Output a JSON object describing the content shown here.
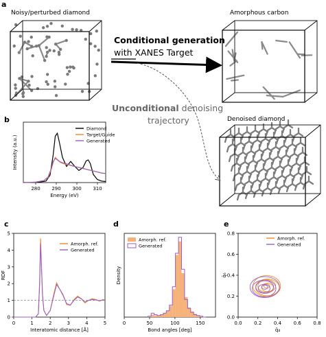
{
  "panels": {
    "a": {
      "letter": "a",
      "noisy_label": "Noisy/perturbed diamond",
      "amorphous_label": "Amorphous carbon",
      "denoised_label": "Denoised diamond",
      "cond_line1": "Conditional generation",
      "cond_line2": "with XANES Target",
      "uncond_bold": "Unconditional",
      "uncond_rest": " denoising",
      "uncond_line2": "trajectory"
    },
    "b": {
      "letter": "b"
    },
    "c": {
      "letter": "c"
    },
    "d": {
      "letter": "d"
    },
    "e": {
      "letter": "e"
    }
  },
  "colors": {
    "black": "#000000",
    "orange": "#f08a24",
    "purple": "#9a5fc2",
    "gray_struct": "#8a8a8a"
  },
  "chart_data": [
    {
      "id": "b",
      "type": "line",
      "xlabel": "Energy (eV)",
      "ylabel": "Intensity (a.u.)",
      "xlim": [
        274,
        314
      ],
      "ylim": [
        0,
        1.2
      ],
      "xticks": [
        280,
        290,
        300,
        310
      ],
      "legend_position": "top-right",
      "series": [
        {
          "name": "Diamond",
          "color": "#000000",
          "x": [
            274,
            282,
            285,
            287,
            288.5,
            289.5,
            290.5,
            291.5,
            293,
            295,
            297,
            299,
            301,
            303,
            304.5,
            305.5,
            306.5,
            308,
            310,
            312,
            314
          ],
          "y": [
            0.0,
            0.01,
            0.03,
            0.15,
            0.55,
            0.92,
            0.98,
            0.8,
            0.5,
            0.32,
            0.42,
            0.32,
            0.24,
            0.3,
            0.43,
            0.45,
            0.38,
            0.16,
            0.06,
            0.03,
            0.02
          ]
        },
        {
          "name": "Target/Guide",
          "color": "#f08a24",
          "x": [
            274,
            280,
            284,
            286,
            287.5,
            288.5,
            289.5,
            290.5,
            292,
            294,
            296,
            298,
            300,
            302,
            304,
            306,
            308,
            310,
            312,
            314
          ],
          "y": [
            0.0,
            0.01,
            0.04,
            0.1,
            0.25,
            0.4,
            0.5,
            0.46,
            0.4,
            0.37,
            0.35,
            0.33,
            0.31,
            0.29,
            0.27,
            0.25,
            0.23,
            0.21,
            0.19,
            0.18
          ]
        },
        {
          "name": "Generated",
          "color": "#9a5fc2",
          "x": [
            274,
            280,
            284,
            286,
            287.5,
            288.5,
            289.5,
            290.5,
            292,
            294,
            296,
            298,
            300,
            302,
            304,
            306,
            308,
            310,
            312,
            314
          ],
          "y": [
            0.0,
            0.01,
            0.04,
            0.11,
            0.27,
            0.42,
            0.48,
            0.45,
            0.41,
            0.38,
            0.36,
            0.33,
            0.31,
            0.29,
            0.27,
            0.25,
            0.23,
            0.21,
            0.19,
            0.18
          ]
        }
      ]
    },
    {
      "id": "c",
      "type": "line",
      "xlabel": "Interatomic distance [Å]",
      "ylabel": "RDF",
      "xlim": [
        0,
        5
      ],
      "ylim": [
        0,
        5
      ],
      "xticks": [
        0,
        1,
        2,
        3,
        4,
        5
      ],
      "yticks": [
        0,
        1,
        2,
        3,
        4,
        5
      ],
      "reference_line_y": 1,
      "legend_position": "top-right",
      "series": [
        {
          "name": "Amorph. ref.",
          "color": "#f08a24",
          "x": [
            0,
            1.2,
            1.35,
            1.42,
            1.47,
            1.52,
            1.58,
            1.65,
            1.8,
            2.0,
            2.2,
            2.35,
            2.5,
            2.7,
            2.9,
            3.1,
            3.3,
            3.5,
            3.7,
            3.9,
            4.1,
            4.3,
            4.5,
            4.7,
            4.9,
            5.0
          ],
          "y": [
            0,
            0,
            0.2,
            2.2,
            4.7,
            3.1,
            1.3,
            0.4,
            0.1,
            0.4,
            1.4,
            2.05,
            1.7,
            1.35,
            0.75,
            0.7,
            1.05,
            1.25,
            1.1,
            0.85,
            1.0,
            1.1,
            1.05,
            0.95,
            1.05,
            1.0
          ]
        },
        {
          "name": "Generated",
          "color": "#9a5fc2",
          "x": [
            0,
            1.2,
            1.35,
            1.42,
            1.47,
            1.52,
            1.58,
            1.65,
            1.8,
            2.0,
            2.2,
            2.35,
            2.5,
            2.7,
            2.9,
            3.1,
            3.3,
            3.5,
            3.7,
            3.9,
            4.1,
            4.3,
            4.5,
            4.7,
            4.9,
            5.0
          ],
          "y": [
            0,
            0,
            0.2,
            2.0,
            4.4,
            3.0,
            1.3,
            0.4,
            0.1,
            0.4,
            1.3,
            1.95,
            1.7,
            1.3,
            0.8,
            0.72,
            1.0,
            1.2,
            1.1,
            0.9,
            1.0,
            1.05,
            1.02,
            0.98,
            1.02,
            1.0
          ]
        }
      ]
    },
    {
      "id": "d",
      "type": "bar",
      "xlabel": "Bond angles [deg]",
      "ylabel": "Density",
      "xlim": [
        0,
        180
      ],
      "xticks": [
        0,
        50,
        100,
        150
      ],
      "legend_position": "top-right",
      "series": [
        {
          "name": "Amorph. ref.",
          "color": "#f5b27a",
          "x": [
            50,
            56,
            62,
            68,
            74,
            80,
            86,
            92,
            98,
            104,
            110,
            116,
            122,
            128,
            134,
            140,
            146,
            152,
            158
          ],
          "values": [
            0.01,
            0.03,
            0.02,
            0.02,
            0.03,
            0.05,
            0.08,
            0.14,
            0.35,
            0.78,
            0.95,
            0.55,
            0.25,
            0.12,
            0.07,
            0.04,
            0.02,
            0.01,
            0.0
          ]
        },
        {
          "name": "Generated",
          "color": "#9a5fc2",
          "x": [
            50,
            56,
            62,
            68,
            74,
            80,
            86,
            92,
            98,
            104,
            110,
            116,
            122,
            128,
            134,
            140,
            146,
            152,
            158
          ],
          "values": [
            0.01,
            0.05,
            0.03,
            0.02,
            0.03,
            0.05,
            0.08,
            0.15,
            0.38,
            0.8,
            1.0,
            0.6,
            0.22,
            0.11,
            0.06,
            0.03,
            0.02,
            0.01,
            0.0
          ]
        }
      ]
    },
    {
      "id": "e",
      "type": "scatter",
      "xlabel": "q̄₄",
      "ylabel": "q̄₆",
      "xlim": [
        0,
        0.8
      ],
      "ylim": [
        0,
        0.8
      ],
      "xticks": [
        0.0,
        0.2,
        0.4,
        0.6,
        0.8
      ],
      "yticks": [
        0.0,
        0.2,
        0.4,
        0.6,
        0.8
      ],
      "legend_position": "top-right",
      "series": [
        {
          "name": "Amorph. ref.",
          "color": "#f08a24",
          "center": [
            0.29,
            0.29
          ],
          "radii": [
            [
              0.03,
              0.02
            ],
            [
              0.06,
              0.04
            ],
            [
              0.09,
              0.06
            ],
            [
              0.12,
              0.08
            ],
            [
              0.14,
              0.1
            ]
          ]
        },
        {
          "name": "Generated",
          "color": "#9a5fc2",
          "center": [
            0.27,
            0.28
          ],
          "radii": [
            [
              0.03,
              0.02
            ],
            [
              0.06,
              0.04
            ],
            [
              0.09,
              0.06
            ],
            [
              0.12,
              0.08
            ],
            [
              0.15,
              0.1
            ]
          ]
        }
      ]
    }
  ]
}
